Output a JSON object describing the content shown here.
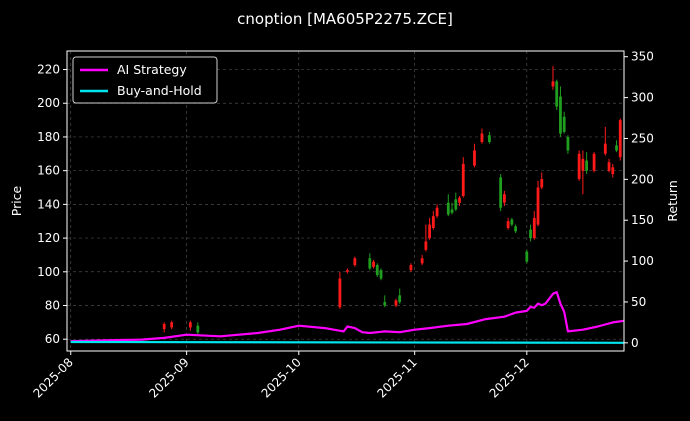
{
  "chart_data": {
    "type": "line",
    "title": "cnoption [MA605P2275.ZCE]",
    "ylabel_left": "Price",
    "ylabel_right": "Return",
    "xlabel": "",
    "x_ticks": [
      "2025-08",
      "2025-09",
      "2025-10",
      "2025-11",
      "2025-12"
    ],
    "xlim": [
      "2025-07-31",
      "2025-12-27"
    ],
    "ylim_left": [
      53,
      231
    ],
    "yticks_left": [
      60,
      80,
      100,
      120,
      140,
      160,
      180,
      200,
      220
    ],
    "ylim_right": [
      -10,
      357
    ],
    "yticks_right": [
      0,
      50,
      100,
      150,
      200,
      250,
      300,
      350
    ],
    "grid": true,
    "legend_position": "top-left",
    "colors": {
      "background": "#000000",
      "ai_strategy": "#ff00ff",
      "buy_and_hold": "#00e5ee",
      "candle_up": "#ff1a1a",
      "candle_down": "#1f9e1f",
      "grid": "#4a4a4a"
    },
    "series": [
      {
        "name": "AI Strategy",
        "axis": "right",
        "x": [
          "2025-08-01",
          "2025-08-10",
          "2025-08-20",
          "2025-08-26",
          "2025-09-01",
          "2025-09-10",
          "2025-09-20",
          "2025-09-26",
          "2025-10-01",
          "2025-10-08",
          "2025-10-13",
          "2025-10-14",
          "2025-10-16",
          "2025-10-18",
          "2025-10-20",
          "2025-10-24",
          "2025-10-28",
          "2025-11-01",
          "2025-11-05",
          "2025-11-10",
          "2025-11-15",
          "2025-11-20",
          "2025-11-25",
          "2025-11-28",
          "2025-12-01",
          "2025-12-02",
          "2025-12-03",
          "2025-12-04",
          "2025-12-05",
          "2025-12-06",
          "2025-12-08",
          "2025-12-09",
          "2025-12-10",
          "2025-12-11",
          "2025-12-12",
          "2025-12-16",
          "2025-12-20",
          "2025-12-24",
          "2025-12-27"
        ],
        "values": [
          2,
          3,
          4,
          6,
          10,
          8,
          12,
          16,
          21,
          18,
          14,
          20,
          18,
          13,
          12,
          14,
          13,
          16,
          18,
          21,
          23,
          29,
          32,
          37,
          39,
          44,
          43,
          48,
          46,
          48,
          60,
          62,
          48,
          38,
          14,
          16,
          20,
          25,
          27
        ]
      },
      {
        "name": "Buy-and-Hold",
        "axis": "right",
        "x": [
          "2025-08-01",
          "2025-12-27"
        ],
        "values": [
          1,
          0
        ]
      }
    ],
    "candles": {
      "axis": "left",
      "x": [
        "2025-08-26",
        "2025-08-28",
        "2025-09-02",
        "2025-09-04",
        "2025-10-12",
        "2025-10-14",
        "2025-10-16",
        "2025-10-20",
        "2025-10-21",
        "2025-10-22",
        "2025-10-23",
        "2025-10-24",
        "2025-10-27",
        "2025-10-28",
        "2025-10-31",
        "2025-11-03",
        "2025-11-04",
        "2025-11-05",
        "2025-11-06",
        "2025-11-07",
        "2025-11-10",
        "2025-11-11",
        "2025-11-12",
        "2025-11-13",
        "2025-11-14",
        "2025-11-17",
        "2025-11-19",
        "2025-11-21",
        "2025-11-24",
        "2025-11-25",
        "2025-11-26",
        "2025-11-27",
        "2025-11-28",
        "2025-12-01",
        "2025-12-02",
        "2025-12-03",
        "2025-12-04",
        "2025-12-05",
        "2025-12-08",
        "2025-12-09",
        "2025-12-10",
        "2025-12-11",
        "2025-12-12",
        "2025-12-15",
        "2025-12-16",
        "2025-12-17",
        "2025-12-19",
        "2025-12-22",
        "2025-12-23",
        "2025-12-24",
        "2025-12-25",
        "2025-12-26"
      ],
      "open": [
        66,
        67,
        67,
        68,
        79,
        100,
        104,
        108,
        103,
        104,
        101,
        82,
        80,
        86,
        101,
        105,
        113,
        120,
        126,
        133,
        141,
        137,
        143,
        141,
        145,
        163,
        177,
        181,
        156,
        141,
        126,
        131,
        127,
        112,
        125,
        120,
        128,
        150,
        210,
        213,
        204,
        192,
        180,
        155,
        160,
        166,
        160,
        170,
        160,
        158,
        175,
        168
      ],
      "close": [
        69,
        70,
        70,
        64,
        96,
        101,
        108,
        102,
        106,
        98,
        96,
        80,
        83,
        82,
        104,
        108,
        118,
        128,
        133,
        138,
        134,
        135,
        137,
        144,
        164,
        172,
        182,
        177,
        138,
        146,
        130,
        128,
        124,
        106,
        120,
        132,
        150,
        155,
        213,
        198,
        182,
        183,
        172,
        170,
        167,
        160,
        170,
        176,
        165,
        162,
        172,
        190
      ],
      "high": [
        70,
        71,
        71,
        70,
        100,
        102,
        109,
        111,
        107,
        105,
        102,
        86,
        84,
        90,
        105,
        110,
        128,
        132,
        136,
        140,
        146,
        141,
        147,
        145,
        168,
        176,
        185,
        183,
        158,
        148,
        132,
        132,
        128,
        113,
        128,
        136,
        154,
        159,
        222,
        214,
        210,
        195,
        181,
        172,
        172,
        171,
        171,
        186,
        167,
        164,
        178,
        191
      ],
      "low": [
        64,
        66,
        65,
        63,
        78,
        99,
        103,
        101,
        102,
        97,
        95,
        79,
        79,
        81,
        100,
        104,
        112,
        119,
        125,
        132,
        133,
        134,
        136,
        139,
        144,
        162,
        176,
        176,
        136,
        139,
        125,
        127,
        123,
        105,
        118,
        119,
        127,
        149,
        208,
        196,
        180,
        182,
        170,
        154,
        146,
        158,
        159,
        169,
        159,
        156,
        171,
        166
      ]
    }
  }
}
